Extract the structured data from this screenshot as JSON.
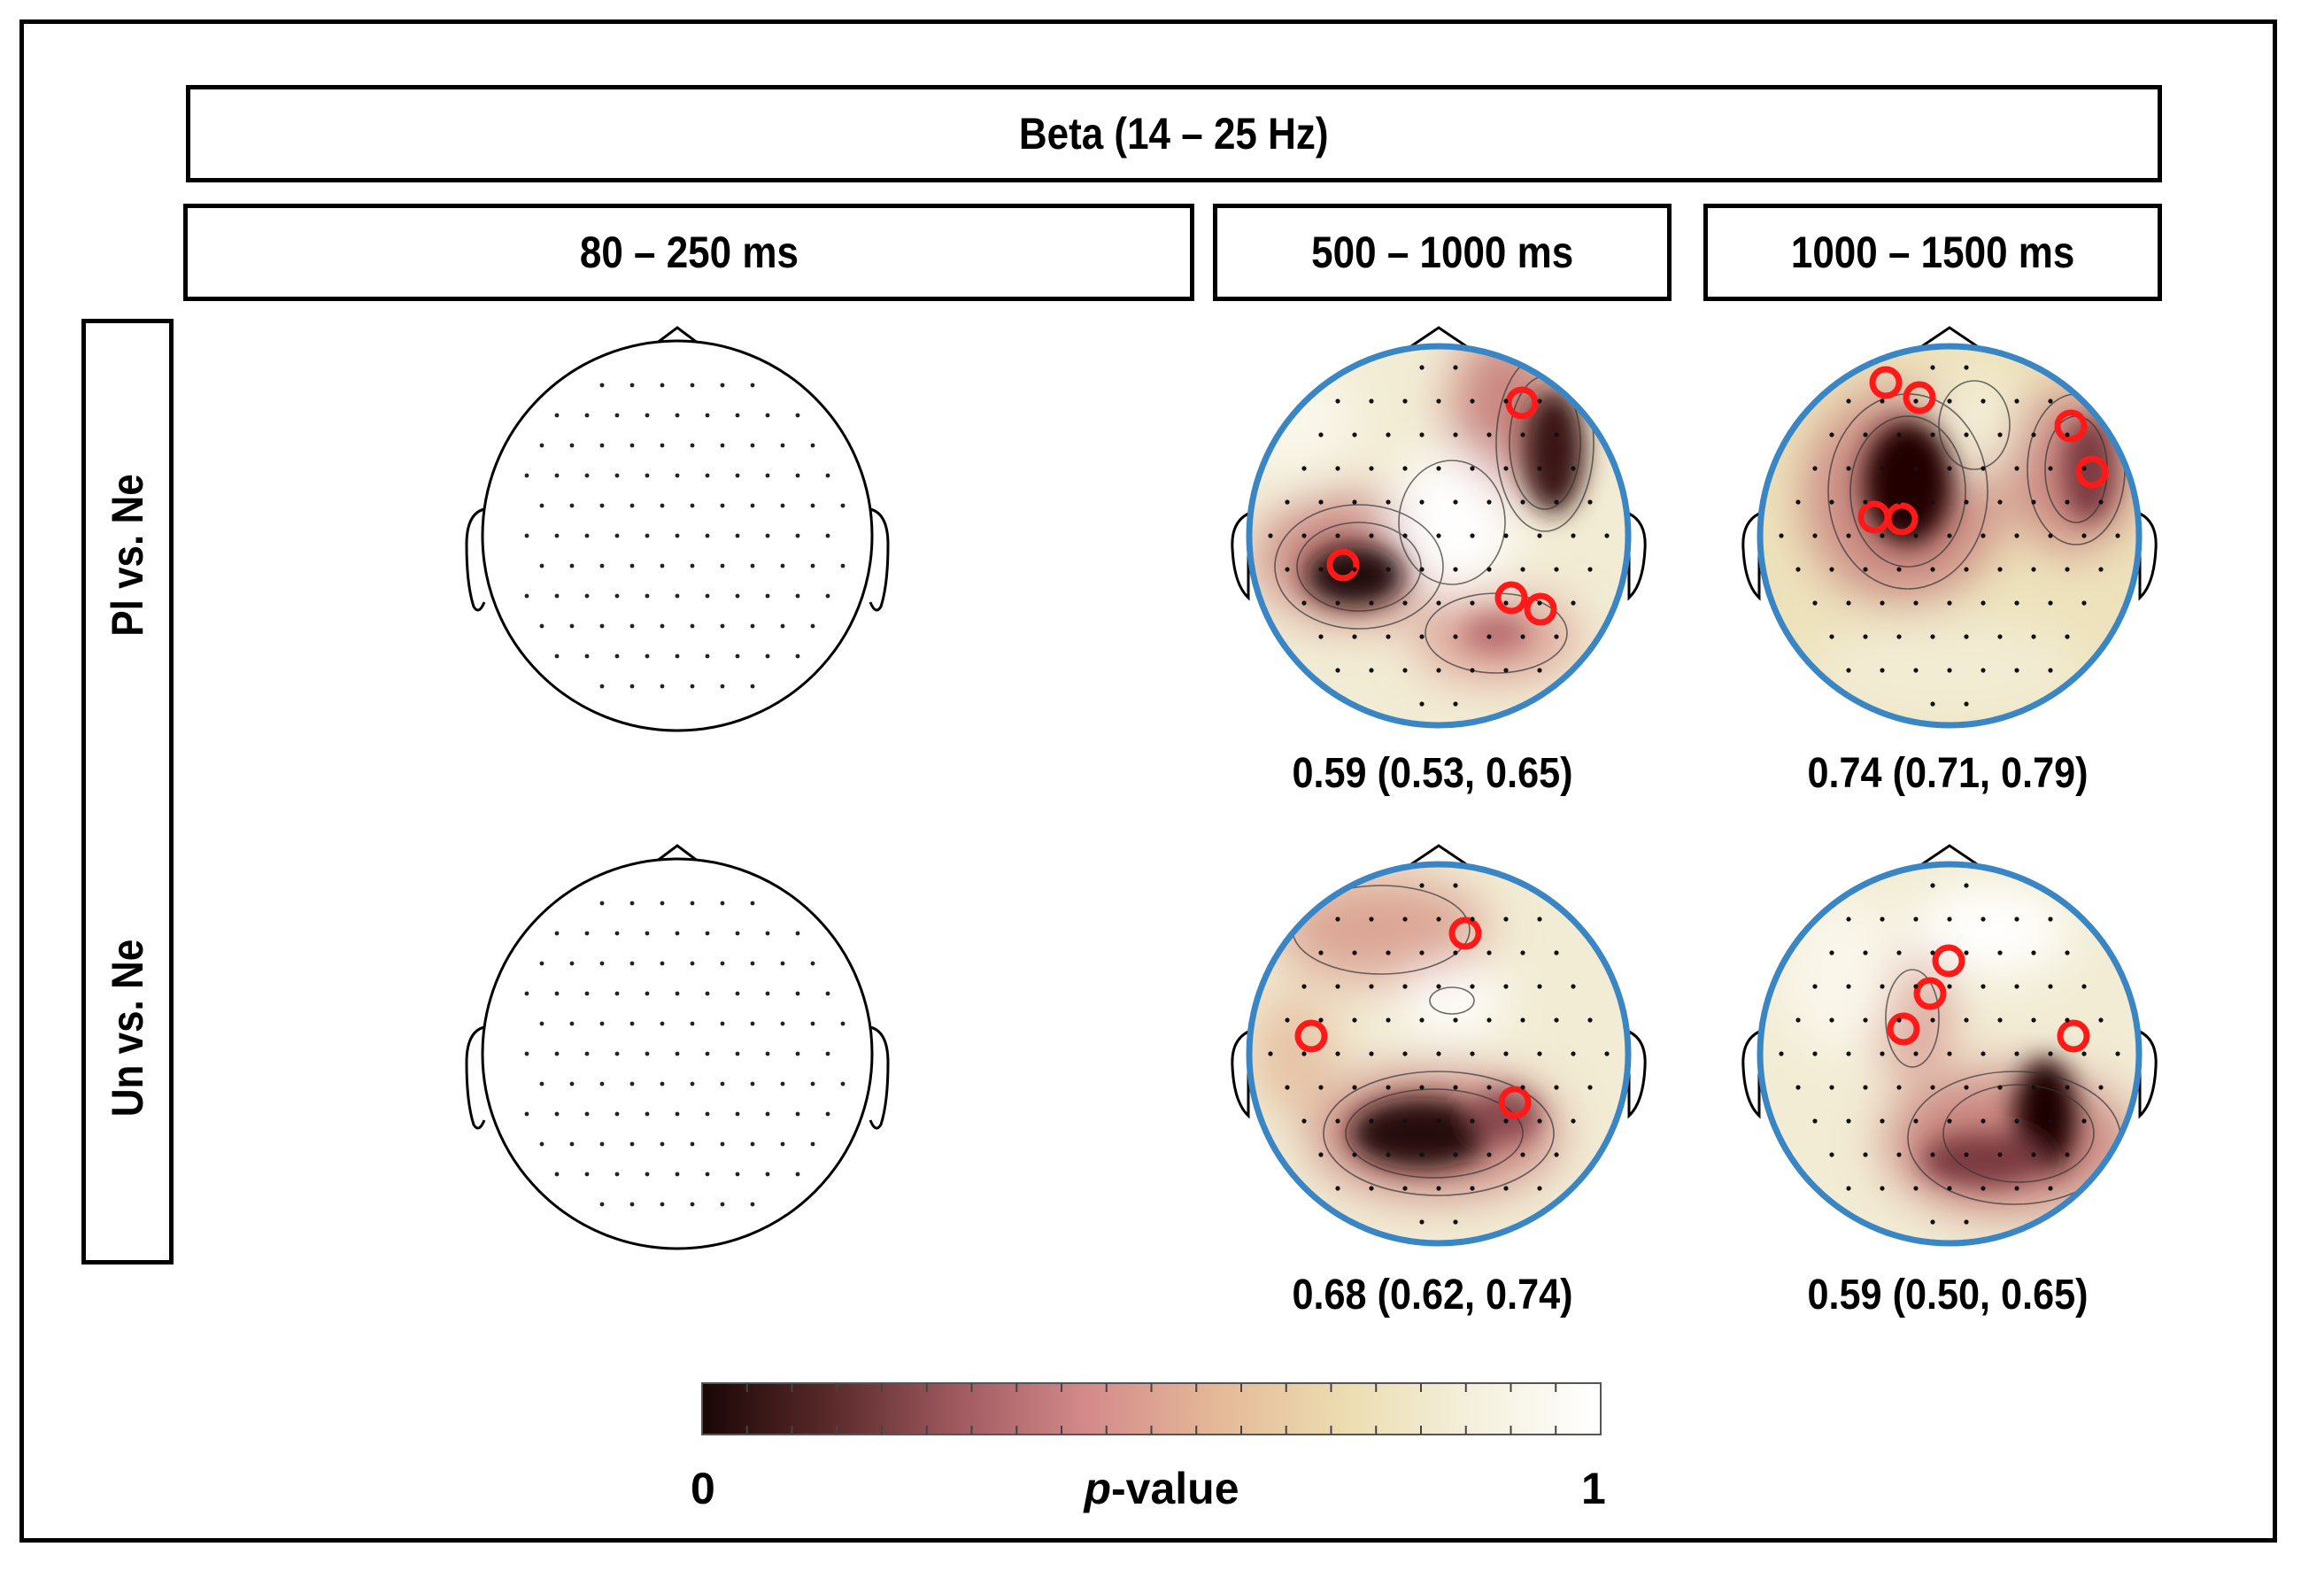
{
  "figure": {
    "band_title": "Beta (14 – 25 Hz)",
    "time_windows": [
      "80 – 250 ms",
      "500 – 1000  ms",
      "1000 – 1500  ms"
    ],
    "rows": [
      "Pl vs. Ne",
      "Un vs. Ne"
    ],
    "auc_values": {
      "pl_500_1000": "0.59 (0.53, 0.65)",
      "pl_1000_1500": "0.74 (0.71, 0.79)",
      "un_500_1000": "0.68 (0.62, 0.74)",
      "un_1000_1500": "0.59 (0.50, 0.65)"
    },
    "colorbar": {
      "min_label": "0",
      "max_label": "1",
      "label_italic": "p",
      "label_rest": "-value",
      "colors": [
        "#1a0606",
        "#5a2a2a",
        "#a05a60",
        "#d48a8a",
        "#e4b898",
        "#ecdcb0",
        "#f4f0dc",
        "#ffffff"
      ]
    },
    "highlight_color": "#ff1a1a",
    "outline_color": "#3a86c4"
  }
}
